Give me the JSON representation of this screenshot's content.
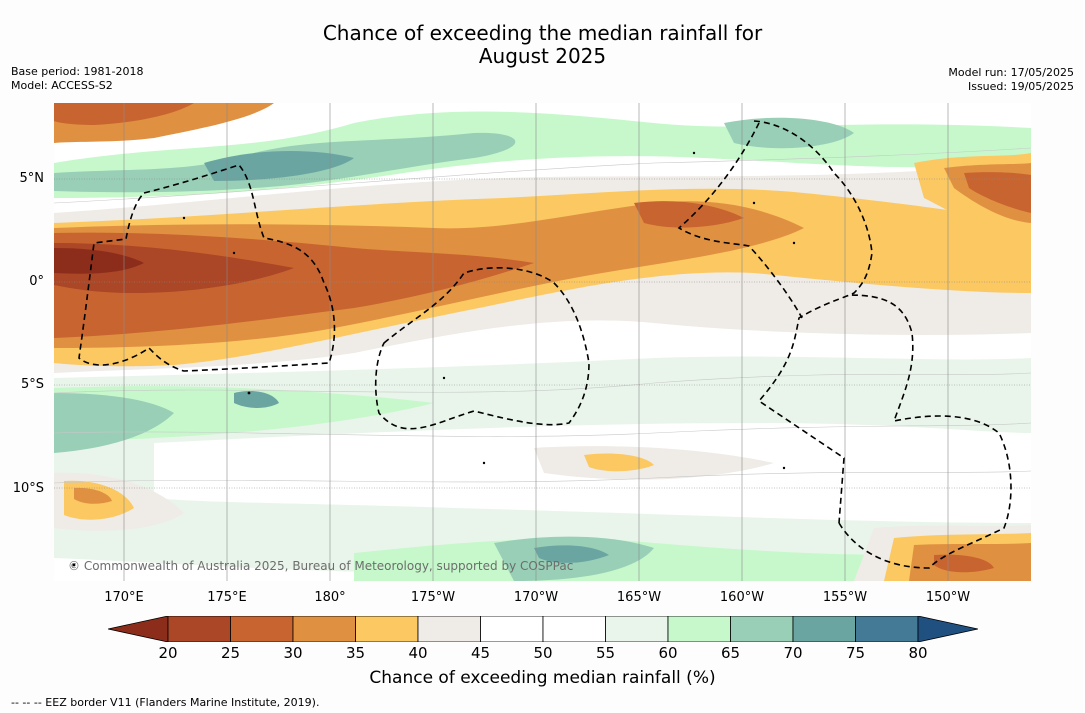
{
  "title_line1": "Chance of exceeding the median rainfall for",
  "title_line2": "August 2025",
  "meta_left": {
    "base_period": "Base period: 1981-2018",
    "model": "Model: ACCESS-S2"
  },
  "meta_right": {
    "model_run": "Model run: 17/05/2025",
    "issued": "Issued: 19/05/2025"
  },
  "lat_labels": [
    "5°N",
    "0°",
    "5°S",
    "10°S"
  ],
  "lon_labels": [
    "170°E",
    "175°E",
    "180°",
    "175°W",
    "170°W",
    "165°W",
    "160°W",
    "155°W",
    "150°W"
  ],
  "copyright": "© Commonwealth of Australia 2025, Bureau of Meteorology, supported by COSPPac",
  "colorbar": {
    "ticks": [
      "20",
      "25",
      "30",
      "35",
      "40",
      "45",
      "50",
      "55",
      "60",
      "65",
      "70",
      "75",
      "80"
    ],
    "colors": [
      "#8c2d1b",
      "#ab4626",
      "#c8642f",
      "#e09041",
      "#fbc862",
      "#efebe6",
      "#ffffff",
      "#ffffff",
      "#e9f5ea",
      "#c6f8cb",
      "#98cfb6",
      "#6aa5a2",
      "#447a96",
      "#1f5080"
    ],
    "label": "Chance of exceeding median rainfall (%)"
  },
  "legend_note": "--  --  -- EEZ border V11 (Flanders Marine Institute, 2019)."
}
